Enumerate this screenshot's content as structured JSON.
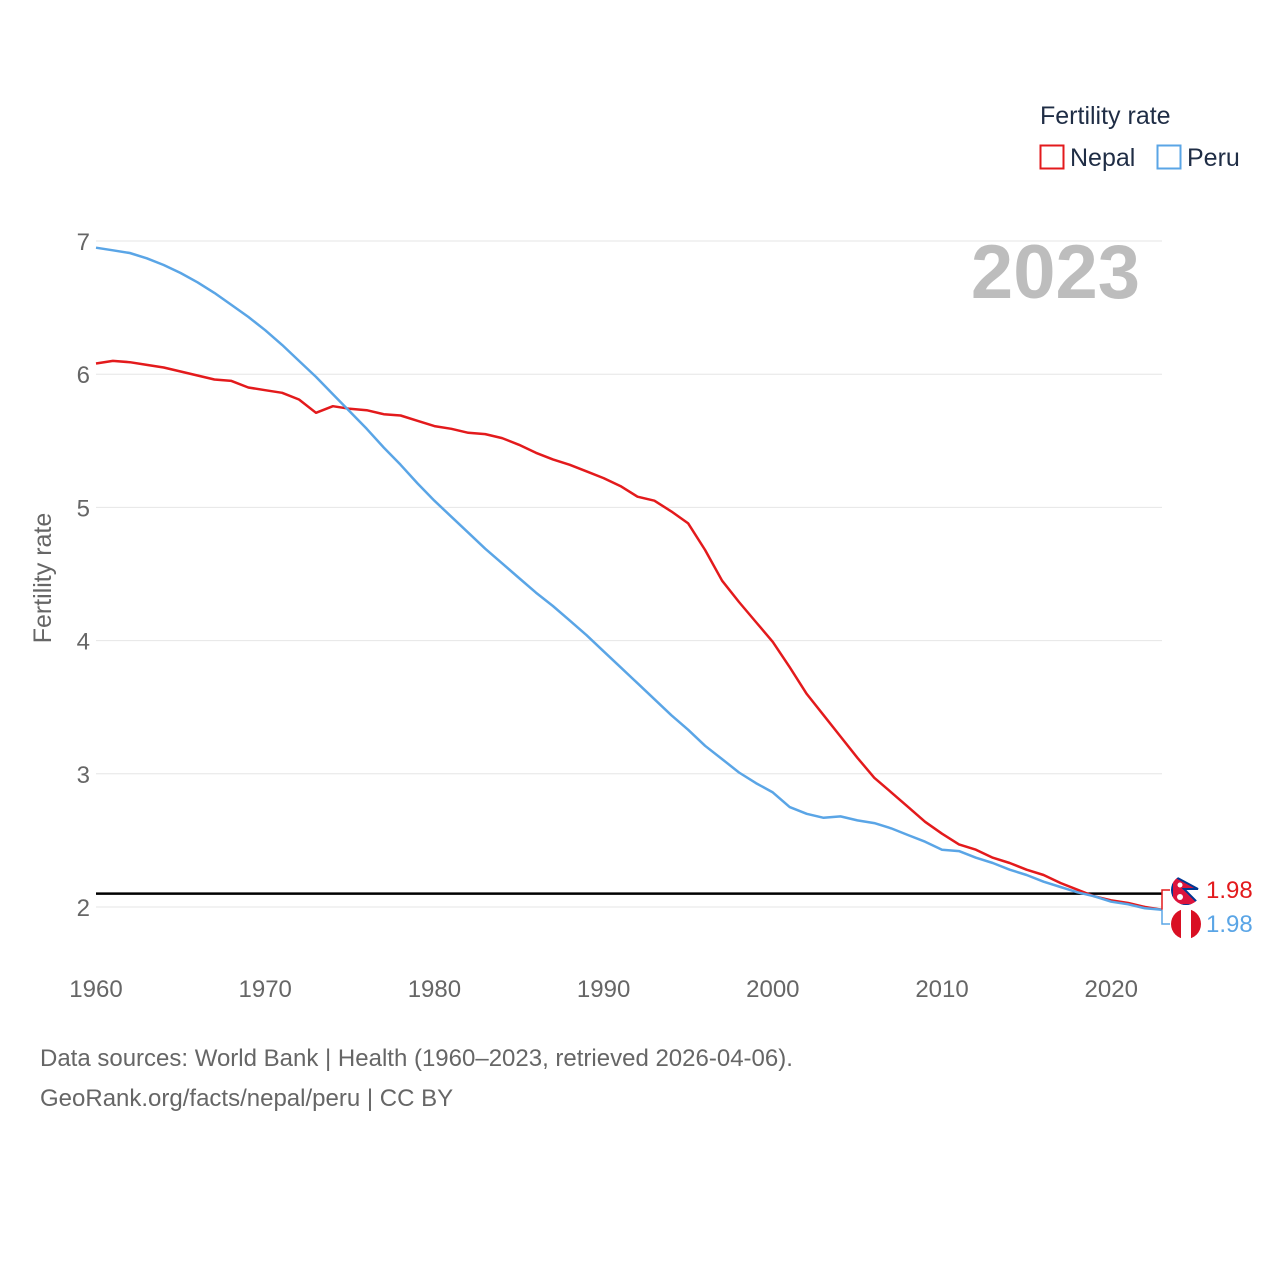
{
  "chart_data": {
    "type": "line",
    "ylabel": "Fertility rate",
    "xlabel": "",
    "xlim": [
      1960,
      2023
    ],
    "ylim": [
      1.6,
      7.0
    ],
    "x_ticks": [
      "1960",
      "1970",
      "1980",
      "1990",
      "2000",
      "2010",
      "2020"
    ],
    "y_ticks": [
      "2",
      "3",
      "4",
      "5",
      "6",
      "7"
    ],
    "current_year": "2023",
    "legend": {
      "title": "Fertility rate",
      "position": "top-right"
    },
    "reference_line": {
      "y": 2.1,
      "color": "#000000"
    },
    "series": [
      {
        "name": "Nepal",
        "color": "#e31a1c",
        "end_label": "1.98",
        "x": [
          1960,
          1961,
          1962,
          1963,
          1964,
          1965,
          1966,
          1967,
          1968,
          1969,
          1970,
          1971,
          1972,
          1973,
          1974,
          1975,
          1976,
          1977,
          1978,
          1979,
          1980,
          1981,
          1982,
          1983,
          1984,
          1985,
          1986,
          1987,
          1988,
          1989,
          1990,
          1991,
          1992,
          1993,
          1994,
          1995,
          1996,
          1997,
          1998,
          1999,
          2000,
          2001,
          2002,
          2003,
          2004,
          2005,
          2006,
          2007,
          2008,
          2009,
          2010,
          2011,
          2012,
          2013,
          2014,
          2015,
          2016,
          2017,
          2018,
          2019,
          2020,
          2021,
          2022,
          2023
        ],
        "values": [
          6.08,
          6.1,
          6.09,
          6.07,
          6.05,
          6.02,
          5.99,
          5.96,
          5.95,
          5.9,
          5.88,
          5.86,
          5.81,
          5.71,
          5.76,
          5.74,
          5.73,
          5.7,
          5.69,
          5.65,
          5.61,
          5.59,
          5.56,
          5.55,
          5.52,
          5.47,
          5.41,
          5.36,
          5.32,
          5.27,
          5.22,
          5.16,
          5.08,
          5.05,
          4.97,
          4.88,
          4.68,
          4.45,
          4.29,
          4.14,
          3.99,
          3.8,
          3.6,
          3.44,
          3.28,
          3.12,
          2.97,
          2.86,
          2.75,
          2.64,
          2.55,
          2.47,
          2.43,
          2.37,
          2.33,
          2.28,
          2.24,
          2.18,
          2.13,
          2.08,
          2.05,
          2.03,
          2.0,
          1.98
        ]
      },
      {
        "name": "Peru",
        "color": "#5aa5e6",
        "end_label": "1.98",
        "x": [
          1960,
          1961,
          1962,
          1963,
          1964,
          1965,
          1966,
          1967,
          1968,
          1969,
          1970,
          1971,
          1972,
          1973,
          1974,
          1975,
          1976,
          1977,
          1978,
          1979,
          1980,
          1981,
          1982,
          1983,
          1984,
          1985,
          1986,
          1987,
          1988,
          1989,
          1990,
          1991,
          1992,
          1993,
          1994,
          1995,
          1996,
          1997,
          1998,
          1999,
          2000,
          2001,
          2002,
          2003,
          2004,
          2005,
          2006,
          2007,
          2008,
          2009,
          2010,
          2011,
          2012,
          2013,
          2014,
          2015,
          2016,
          2017,
          2018,
          2019,
          2020,
          2021,
          2022,
          2023
        ],
        "values": [
          6.95,
          6.93,
          6.91,
          6.87,
          6.82,
          6.76,
          6.69,
          6.61,
          6.52,
          6.43,
          6.33,
          6.22,
          6.1,
          5.98,
          5.85,
          5.72,
          5.59,
          5.45,
          5.32,
          5.18,
          5.05,
          4.93,
          4.81,
          4.69,
          4.58,
          4.47,
          4.36,
          4.26,
          4.15,
          4.04,
          3.92,
          3.8,
          3.68,
          3.56,
          3.44,
          3.33,
          3.21,
          3.11,
          3.01,
          2.93,
          2.86,
          2.75,
          2.7,
          2.67,
          2.68,
          2.65,
          2.63,
          2.59,
          2.54,
          2.49,
          2.43,
          2.42,
          2.37,
          2.33,
          2.28,
          2.24,
          2.19,
          2.15,
          2.11,
          2.08,
          2.04,
          2.02,
          1.99,
          1.98
        ]
      }
    ]
  },
  "footer": {
    "line1": "Data sources: World Bank | Health (1960–2023, retrieved 2026-04-06).",
    "line2": "GeoRank.org/facts/nepal/peru | CC BY"
  }
}
